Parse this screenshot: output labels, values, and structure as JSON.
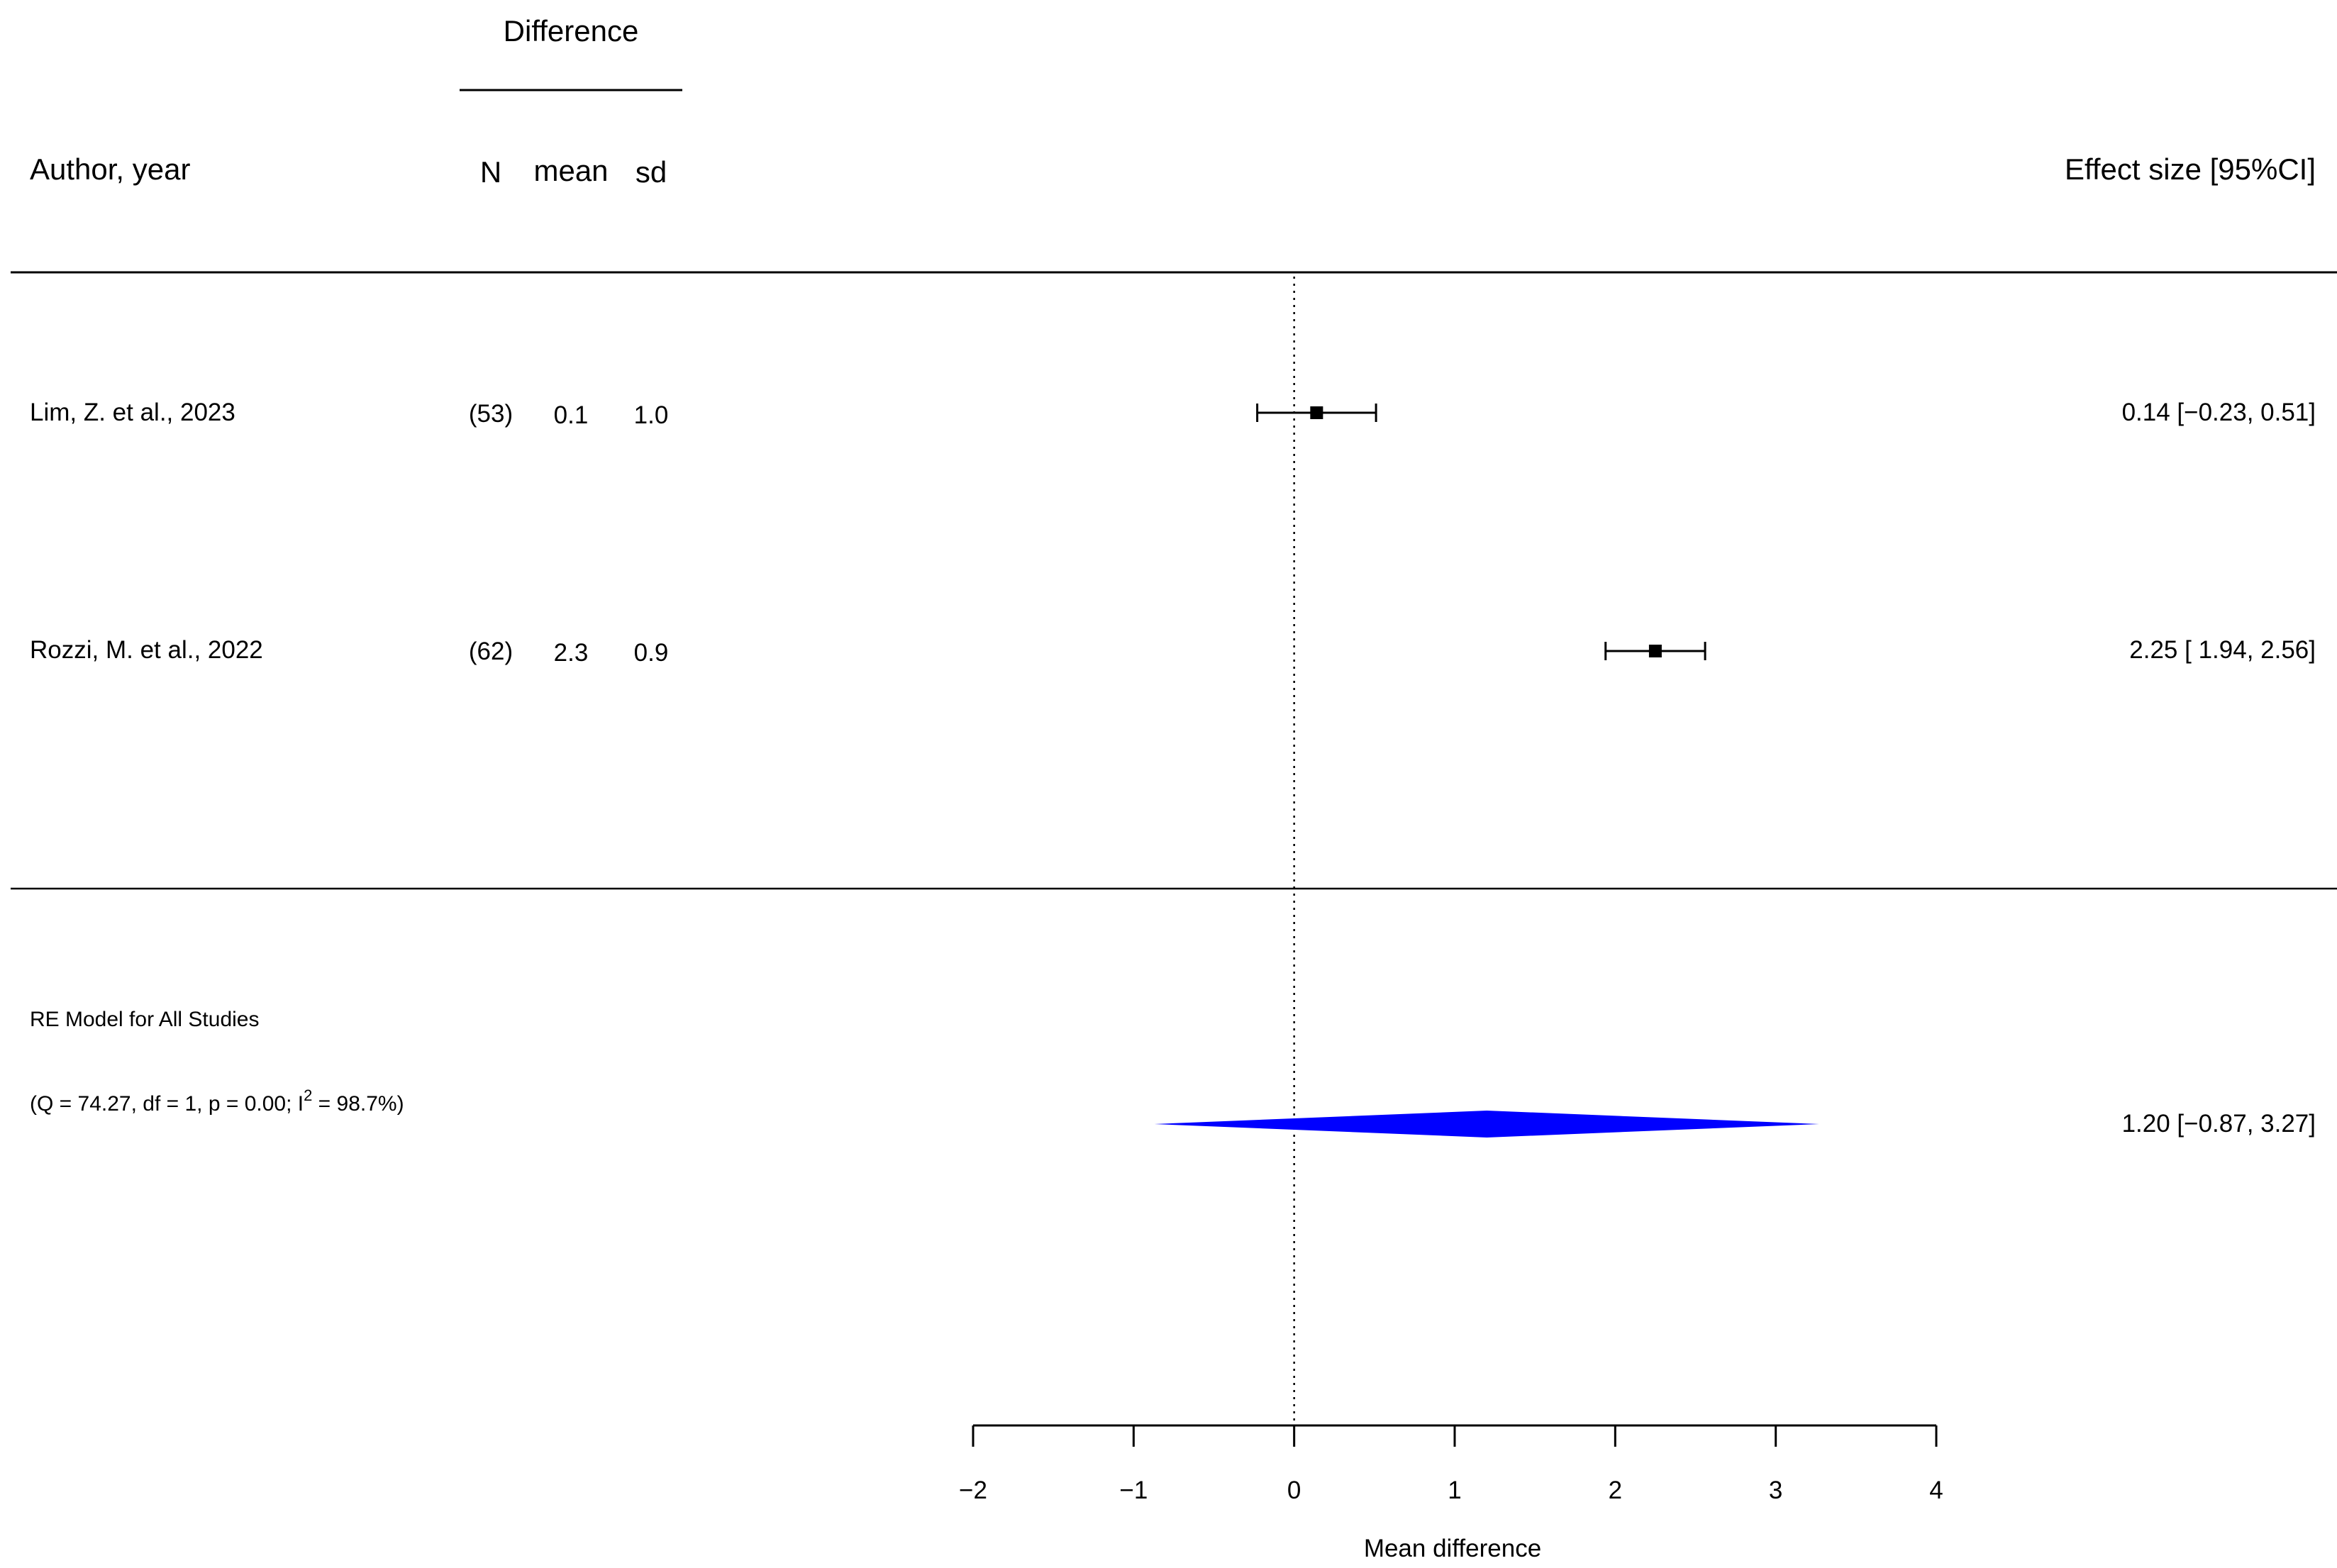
{
  "header": {
    "group_label": "Difference",
    "col_author": "Author, year",
    "col_n": "N",
    "col_mean": "mean",
    "col_sd": "sd",
    "col_effect": "Effect size [95%CI]"
  },
  "studies": [
    {
      "author": "Lim, Z. et al., 2023",
      "n": "(53)",
      "mean": "0.1",
      "sd": "1.0",
      "effect_text": "0.14 [−0.23, 0.51]",
      "estimate": 0.14,
      "ci_low": -0.23,
      "ci_high": 0.51
    },
    {
      "author": "Rozzi, M. et al., 2022",
      "n": "(62)",
      "mean": "2.3",
      "sd": "0.9",
      "effect_text": "2.25 [ 1.94, 2.56]",
      "estimate": 2.25,
      "ci_low": 1.94,
      "ci_high": 2.56
    }
  ],
  "summary": {
    "label": "RE Model for All Studies",
    "stats_prefix": "(Q = 74.27, df = 1, p = 0.00; I",
    "stats_sup": "2",
    "stats_suffix": " = 98.7%)",
    "effect_text": "1.20 [−0.87, 3.27]",
    "estimate": 1.2,
    "ci_low": -0.87,
    "ci_high": 3.27,
    "color": "#0000ff"
  },
  "chart_data": {
    "type": "forest",
    "xlabel": "Mean difference",
    "xlim": [
      -2,
      4
    ],
    "ticks": [
      -2,
      -1,
      0,
      1,
      2,
      3,
      4
    ],
    "tick_labels": [
      "−2",
      "−1",
      "0",
      "1",
      "2",
      "3",
      "4"
    ],
    "reference_line": 0,
    "series": [
      {
        "name": "Lim, Z. et al., 2023",
        "estimate": 0.14,
        "ci": [
          -0.23,
          0.51
        ]
      },
      {
        "name": "Rozzi, M. et al., 2022",
        "estimate": 2.25,
        "ci": [
          1.94,
          2.56
        ]
      },
      {
        "name": "RE Model for All Studies",
        "estimate": 1.2,
        "ci": [
          -0.87,
          3.27
        ]
      }
    ]
  }
}
